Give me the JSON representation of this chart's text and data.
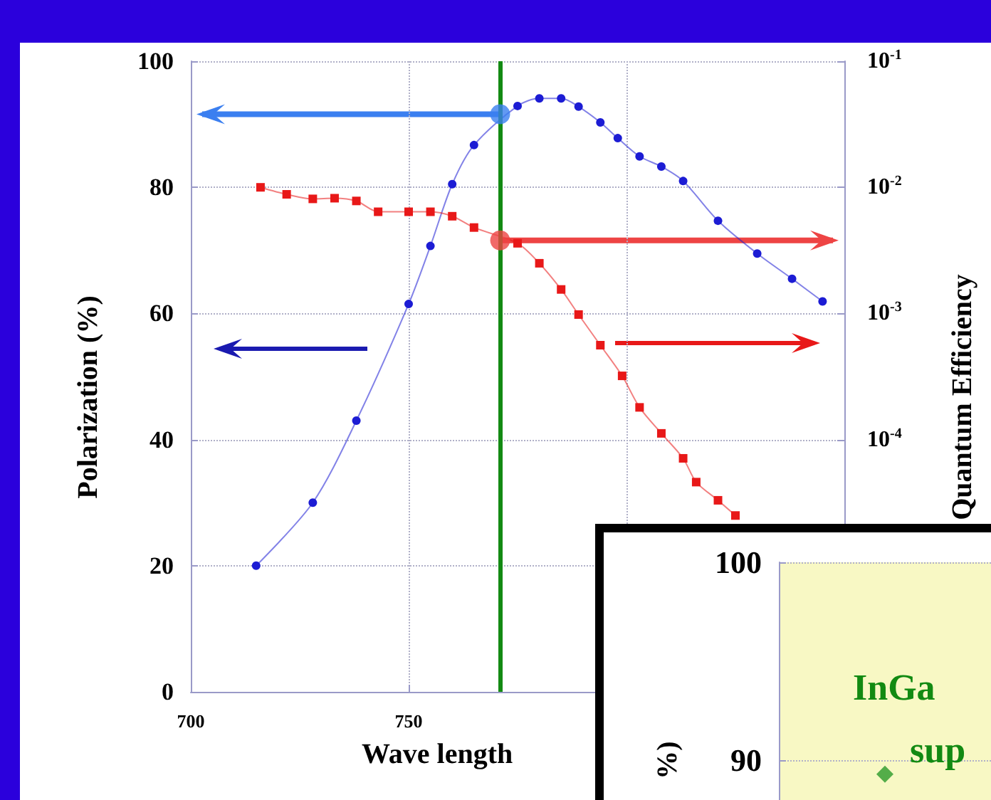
{
  "chart_data": [
    {
      "type": "line",
      "xlabel": "Wave length",
      "ylabel": "Polarization (%)",
      "y2label": "Quantum Efficiency",
      "xlim": [
        700,
        850
      ],
      "xticks": [
        700,
        750,
        {
          "value": 800,
          "label": null
        },
        {
          "value": 850,
          "label": null
        }
      ],
      "ylim": [
        0,
        100
      ],
      "yticks": [
        0,
        20,
        40,
        60,
        80,
        100
      ],
      "y2lim": [
        1e-06,
        0.1
      ],
      "y2ticks": [
        {
          "value": 0.1,
          "label": "10$^{-1}$"
        },
        {
          "value": 0.01,
          "label": "10$^{-2}$"
        },
        {
          "value": 0.001,
          "label": "10$^{-3}$"
        },
        {
          "value": 0.0001,
          "label": "10$^{-4}$"
        }
      ],
      "log": "y2",
      "grid": true,
      "line_style": "solid",
      "ref_lines": [
        {
          "axis": "x",
          "value": 771,
          "color": "#138a13"
        }
      ],
      "series": [
        {
          "color": "#1c1cd4",
          "marker": "circle",
          "x": [
            715,
            728,
            738,
            750,
            755,
            760,
            765,
            770,
            775,
            780,
            785,
            789,
            794,
            798,
            803,
            808,
            813,
            821,
            830,
            838,
            845
          ],
          "values": [
            20,
            30,
            43,
            61.5,
            70.7,
            80.5,
            86.7,
            null,
            92.9,
            94.1,
            94.1,
            92.8,
            90.3,
            87.8,
            84.9,
            83.3,
            81,
            74.7,
            69.5,
            65.5,
            61.9
          ]
        },
        {
          "color": "#e81818",
          "marker": "square",
          "axis": "y2",
          "x": [
            716,
            722,
            728,
            733,
            738,
            743,
            750,
            755,
            760,
            765,
            770,
            775,
            780,
            785,
            789,
            794,
            799,
            803,
            808,
            813,
            816,
            821,
            825
          ],
          "values": [
            0.01,
            0.0088,
            0.0081,
            0.0082,
            0.0078,
            0.0064,
            0.0064,
            0.0064,
            0.0059,
            0.0048,
            null,
            0.0036,
            0.0025,
            0.00155,
            0.00098,
            0.00056,
            0.00032,
            0.00018,
            0.000112,
            7.1e-05,
            4.6e-05,
            3.3e-05,
            2.5e-05
          ]
        },
        {
          "type": "scatter",
          "color": "#3b7ff0",
          "marker": "circle",
          "x": [
            771
          ],
          "values": [
            91.6
          ]
        },
        {
          "type": "scatter",
          "color": "#ee4444",
          "marker": "circle",
          "axis": "y2",
          "x": [
            771
          ],
          "values": [
            0.0038
          ]
        }
      ]
    },
    {
      "type": "scatter",
      "ylabel": "%)",
      "ylim": [
        88,
        100
      ],
      "yticks": [
        90,
        100
      ],
      "grid": "y",
      "tick_labels": "y",
      "categories": [
        null
      ],
      "annotations": [
        "InGa",
        "sup"
      ],
      "series": [
        {
          "color": "#2a9a2a",
          "marker": "diamond",
          "values": [
            89.3
          ]
        }
      ]
    }
  ]
}
